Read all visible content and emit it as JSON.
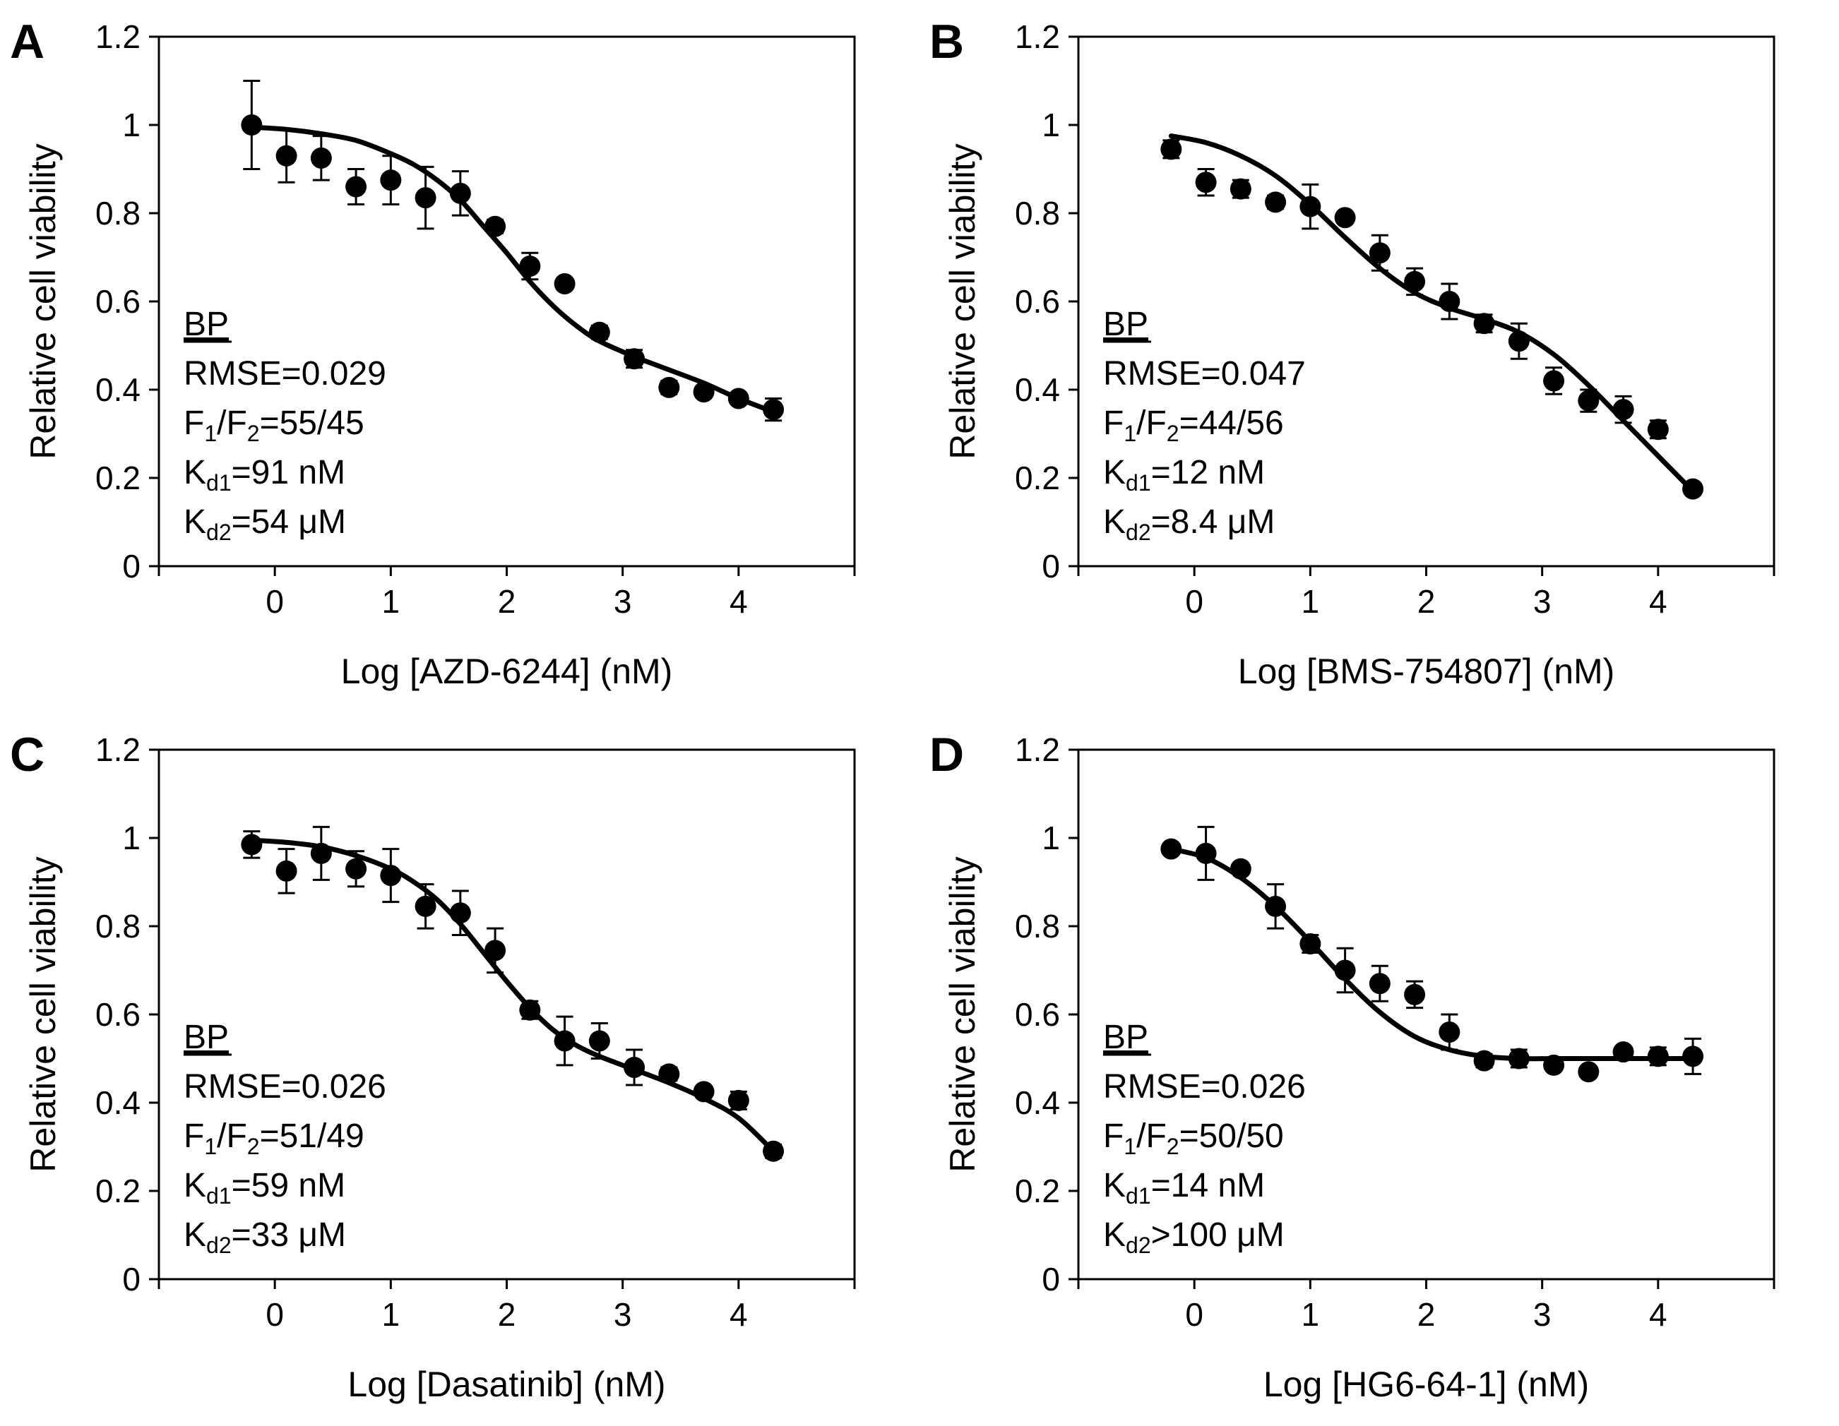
{
  "chart_data": [
    {
      "type": "scatter",
      "panel_label": "A",
      "xlabel": "Log [AZD-6244] (nM)",
      "ylabel": "Relative cell viability",
      "xlim": [
        -1,
        5
      ],
      "ylim": [
        0,
        1.2
      ],
      "x_ticks": [
        "0",
        "1",
        "2",
        "3",
        "4"
      ],
      "y_ticks": [
        "0",
        "0.2",
        "0.4",
        "0.6",
        "0.8",
        "1",
        "1.2"
      ],
      "series": [
        {
          "name": "data",
          "x": [
            -0.2,
            0.1,
            0.4,
            0.7,
            1.0,
            1.3,
            1.6,
            1.9,
            2.2,
            2.5,
            2.8,
            3.1,
            3.4,
            3.7,
            4.0,
            4.3
          ],
          "y": [
            1.0,
            0.93,
            0.925,
            0.86,
            0.875,
            0.835,
            0.845,
            0.77,
            0.68,
            0.64,
            0.53,
            0.47,
            0.405,
            0.395,
            0.38,
            0.355
          ],
          "err": [
            0.1,
            0.06,
            0.05,
            0.04,
            0.055,
            0.07,
            0.05,
            0.015,
            0.03,
            0.01,
            0.015,
            0.02,
            0.015,
            0.01,
            0.01,
            0.025
          ]
        },
        {
          "name": "BP fit",
          "x": [
            -0.2,
            0.1,
            0.4,
            0.7,
            1.0,
            1.2,
            1.4,
            1.6,
            1.8,
            2.0,
            2.2,
            2.4,
            2.6,
            2.8,
            3.1,
            3.4,
            3.7,
            4.0,
            4.3
          ],
          "y": [
            0.995,
            0.99,
            0.98,
            0.965,
            0.935,
            0.91,
            0.875,
            0.83,
            0.77,
            0.71,
            0.645,
            0.59,
            0.545,
            0.51,
            0.475,
            0.445,
            0.415,
            0.38,
            0.35
          ]
        }
      ],
      "annotation": {
        "title": "BP",
        "rmse": "RMSE=0.029",
        "f_prefix": "F",
        "f_sub1": "1",
        "f_mid": "/F",
        "f_sub2": "2",
        "f_value": "=55/45",
        "kd1_prefix": "K",
        "kd1_sub": "d1",
        "kd1_value": "=91 nM",
        "kd2_prefix": "K",
        "kd2_sub": "d2",
        "kd2_value": "=54 μM"
      }
    },
    {
      "type": "scatter",
      "panel_label": "B",
      "xlabel": "Log [BMS-754807] (nM)",
      "ylabel": "Relative cell viability",
      "xlim": [
        -1,
        5
      ],
      "ylim": [
        0,
        1.2
      ],
      "x_ticks": [
        "0",
        "1",
        "2",
        "3",
        "4"
      ],
      "y_ticks": [
        "0",
        "0.2",
        "0.4",
        "0.6",
        "0.8",
        "1",
        "1.2"
      ],
      "series": [
        {
          "name": "data",
          "x": [
            -0.2,
            0.1,
            0.4,
            0.7,
            1.0,
            1.3,
            1.6,
            1.9,
            2.2,
            2.5,
            2.8,
            3.1,
            3.4,
            3.7,
            4.0,
            4.3
          ],
          "y": [
            0.945,
            0.87,
            0.855,
            0.825,
            0.815,
            0.79,
            0.71,
            0.645,
            0.6,
            0.55,
            0.51,
            0.42,
            0.375,
            0.355,
            0.31,
            0.175
          ],
          "err": [
            0.02,
            0.03,
            0.02,
            0.015,
            0.05,
            0.01,
            0.04,
            0.03,
            0.04,
            0.02,
            0.04,
            0.03,
            0.025,
            0.03,
            0.02,
            0.01
          ]
        },
        {
          "name": "BP fit",
          "x": [
            -0.2,
            0.1,
            0.4,
            0.7,
            1.0,
            1.3,
            1.6,
            1.9,
            2.2,
            2.5,
            2.8,
            3.1,
            3.4,
            3.7,
            4.0,
            4.3
          ],
          "y": [
            0.975,
            0.96,
            0.93,
            0.885,
            0.82,
            0.745,
            0.675,
            0.62,
            0.585,
            0.56,
            0.53,
            0.48,
            0.41,
            0.33,
            0.25,
            0.17
          ]
        }
      ],
      "annotation": {
        "title": "BP",
        "rmse": "RMSE=0.047",
        "f_prefix": "F",
        "f_sub1": "1",
        "f_mid": "/F",
        "f_sub2": "2",
        "f_value": "=44/56",
        "kd1_prefix": "K",
        "kd1_sub": "d1",
        "kd1_value": "=12 nM",
        "kd2_prefix": "K",
        "kd2_sub": "d2",
        "kd2_value": "=8.4 μM"
      }
    },
    {
      "type": "scatter",
      "panel_label": "C",
      "xlabel": "Log [Dasatinib] (nM)",
      "ylabel": "Relative cell viability",
      "xlim": [
        -1,
        5
      ],
      "ylim": [
        0,
        1.2
      ],
      "x_ticks": [
        "0",
        "1",
        "2",
        "3",
        "4"
      ],
      "y_ticks": [
        "0",
        "0.2",
        "0.4",
        "0.6",
        "0.8",
        "1",
        "1.2"
      ],
      "series": [
        {
          "name": "data",
          "x": [
            -0.2,
            0.1,
            0.4,
            0.7,
            1.0,
            1.3,
            1.6,
            1.9,
            2.2,
            2.5,
            2.8,
            3.1,
            3.4,
            3.7,
            4.0,
            4.3
          ],
          "y": [
            0.985,
            0.925,
            0.965,
            0.93,
            0.915,
            0.845,
            0.83,
            0.745,
            0.61,
            0.54,
            0.54,
            0.48,
            0.465,
            0.425,
            0.405,
            0.29
          ],
          "err": [
            0.03,
            0.05,
            0.06,
            0.04,
            0.06,
            0.05,
            0.05,
            0.05,
            0.02,
            0.055,
            0.04,
            0.04,
            0.015,
            0.01,
            0.02,
            0.015
          ]
        },
        {
          "name": "BP fit",
          "x": [
            -0.2,
            0.1,
            0.4,
            0.7,
            1.0,
            1.2,
            1.4,
            1.6,
            1.8,
            2.0,
            2.2,
            2.4,
            2.6,
            2.8,
            3.1,
            3.4,
            3.7,
            4.0,
            4.3
          ],
          "y": [
            0.995,
            0.99,
            0.98,
            0.96,
            0.93,
            0.9,
            0.86,
            0.805,
            0.74,
            0.675,
            0.615,
            0.565,
            0.53,
            0.505,
            0.475,
            0.445,
            0.41,
            0.365,
            0.29
          ]
        }
      ],
      "annotation": {
        "title": "BP",
        "rmse": "RMSE=0.026",
        "f_prefix": "F",
        "f_sub1": "1",
        "f_mid": "/F",
        "f_sub2": "2",
        "f_value": "=51/49",
        "kd1_prefix": "K",
        "kd1_sub": "d1",
        "kd1_value": "=59 nM",
        "kd2_prefix": "K",
        "kd2_sub": "d2",
        "kd2_value": "=33 μM"
      }
    },
    {
      "type": "scatter",
      "panel_label": "D",
      "xlabel": "Log [HG6-64-1] (nM)",
      "ylabel": "Relative cell viability",
      "xlim": [
        -1,
        5
      ],
      "ylim": [
        0,
        1.2
      ],
      "x_ticks": [
        "0",
        "1",
        "2",
        "3",
        "4"
      ],
      "y_ticks": [
        "0",
        "0.2",
        "0.4",
        "0.6",
        "0.8",
        "1",
        "1.2"
      ],
      "series": [
        {
          "name": "data",
          "x": [
            -0.2,
            0.1,
            0.4,
            0.7,
            1.0,
            1.3,
            1.6,
            1.9,
            2.2,
            2.5,
            2.8,
            3.1,
            3.4,
            3.7,
            4.0,
            4.3
          ],
          "y": [
            0.975,
            0.965,
            0.93,
            0.845,
            0.76,
            0.7,
            0.67,
            0.645,
            0.56,
            0.495,
            0.5,
            0.485,
            0.47,
            0.515,
            0.505,
            0.505
          ],
          "err": [
            0.01,
            0.06,
            0.01,
            0.05,
            0.02,
            0.05,
            0.04,
            0.03,
            0.04,
            0.015,
            0.02,
            0.01,
            0.01,
            0.01,
            0.02,
            0.04
          ]
        },
        {
          "name": "BP fit",
          "x": [
            -0.2,
            0.1,
            0.4,
            0.7,
            1.0,
            1.3,
            1.6,
            1.9,
            2.2,
            2.5,
            2.8,
            3.1,
            3.4,
            3.7,
            4.0,
            4.3
          ],
          "y": [
            0.975,
            0.955,
            0.91,
            0.845,
            0.765,
            0.68,
            0.605,
            0.55,
            0.52,
            0.505,
            0.5,
            0.5,
            0.5,
            0.5,
            0.5,
            0.5
          ]
        }
      ],
      "annotation": {
        "title": "BP",
        "rmse": "RMSE=0.026",
        "f_prefix": "F",
        "f_sub1": "1",
        "f_mid": "/F",
        "f_sub2": "2",
        "f_value": "=50/50",
        "kd1_prefix": "K",
        "kd1_sub": "d1",
        "kd1_value": "=14 nM",
        "kd2_prefix": "K",
        "kd2_sub": "d2",
        "kd2_value": ">100 μM"
      }
    }
  ]
}
